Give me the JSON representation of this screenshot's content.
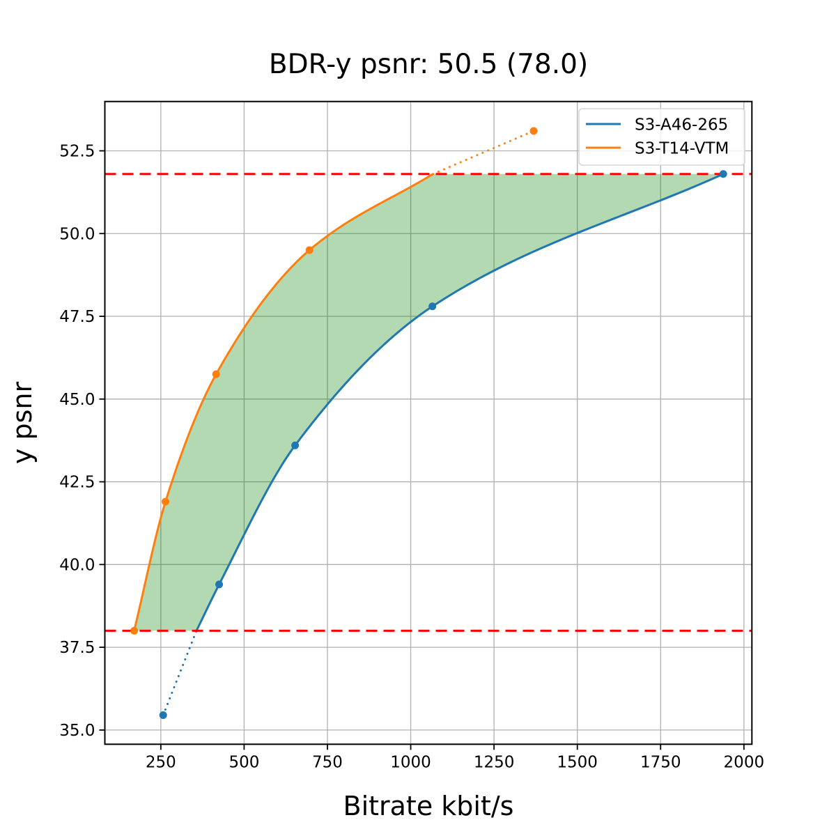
{
  "chart_data": {
    "type": "line",
    "title": "BDR-y psnr: 50.5 (78.0)",
    "xlabel": "Bitrate kbit/s",
    "ylabel": "y psnr",
    "xlim": [
      82,
      2024
    ],
    "ylim": [
      34.57,
      53.99
    ],
    "x_ticks": [
      250,
      500,
      750,
      1000,
      1250,
      1500,
      1750,
      2000
    ],
    "y_ticks": [
      35.0,
      37.5,
      40.0,
      42.5,
      45.0,
      47.5,
      50.0,
      52.5
    ],
    "grid": true,
    "legend": {
      "position": "upper right",
      "entries": [
        "S3-A46-265",
        "S3-T14-VTM"
      ]
    },
    "series": [
      {
        "name": "S3-A46-265",
        "color": "#1f77b4",
        "points": [
          [
            257,
            35.45
          ],
          [
            425,
            39.4
          ],
          [
            653,
            43.6
          ],
          [
            1065,
            47.8
          ],
          [
            1938,
            51.8
          ]
        ],
        "curve_solid": [
          [
            357,
            38.0
          ],
          [
            425,
            39.4
          ],
          [
            653,
            43.6
          ],
          [
            1065,
            47.8
          ],
          [
            1938,
            51.8
          ]
        ],
        "curve_dotted": [
          [
            257,
            35.45
          ],
          [
            357,
            38.0
          ]
        ]
      },
      {
        "name": "S3-T14-VTM",
        "color": "#ff7f0e",
        "points": [
          [
            170,
            38.0
          ],
          [
            264,
            41.9
          ],
          [
            416,
            45.75
          ],
          [
            696,
            49.5
          ],
          [
            1369,
            53.1
          ]
        ],
        "curve_solid": [
          [
            170,
            38.0
          ],
          [
            264,
            41.9
          ],
          [
            416,
            45.75
          ],
          [
            696,
            49.5
          ],
          [
            1067,
            51.8
          ]
        ],
        "curve_dotted": [
          [
            1067,
            51.8
          ],
          [
            1369,
            53.1
          ]
        ]
      }
    ],
    "bd_lines": {
      "color": "#ff0000",
      "style": "dashed",
      "y_values": [
        38.0,
        51.8
      ]
    },
    "shaded_region": {
      "between": [
        "S3-T14-VTM",
        "S3-A46-265"
      ],
      "y_range": [
        38.0,
        51.8
      ],
      "color": "#008000",
      "opacity": 0.3
    }
  }
}
